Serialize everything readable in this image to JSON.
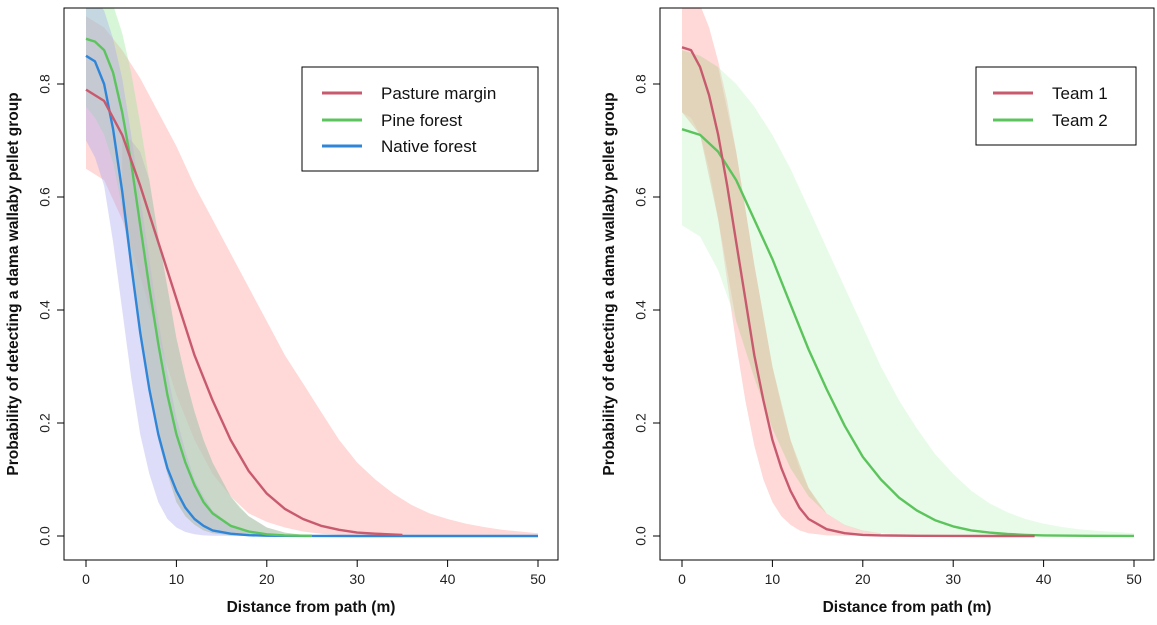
{
  "chart_data": [
    {
      "type": "line",
      "title": "",
      "xlabel": "Distance from path (m)",
      "ylabel": "Probability of detecting a dama wallaby pellet group",
      "xlim": [
        0,
        50
      ],
      "ylim": [
        0,
        0.93
      ],
      "xticks": [
        0,
        10,
        20,
        30,
        40,
        50
      ],
      "yticks": [
        0.0,
        0.2,
        0.4,
        0.6,
        0.8
      ],
      "xtick_labels": [
        "0",
        "10",
        "20",
        "30",
        "40",
        "50"
      ],
      "ytick_labels": [
        "0.0",
        "0.2",
        "0.4",
        "0.6",
        "0.8"
      ],
      "legend_position": "top-right",
      "series": [
        {
          "name": "Pasture margin",
          "color": "#c85a6e",
          "band_color": "#ff9d9d",
          "x": [
            0,
            2,
            4,
            6,
            8,
            10,
            12,
            14,
            16,
            18,
            20,
            22,
            24,
            26,
            28,
            30,
            32,
            35
          ],
          "y": [
            0.79,
            0.77,
            0.71,
            0.62,
            0.52,
            0.42,
            0.32,
            0.24,
            0.17,
            0.115,
            0.075,
            0.048,
            0.03,
            0.018,
            0.011,
            0.006,
            0.004,
            0.002
          ],
          "band_x": [
            0,
            2,
            4,
            6,
            8,
            10,
            12,
            14,
            16,
            18,
            20,
            22,
            24,
            26,
            28,
            30,
            32,
            34,
            36,
            38,
            40,
            42,
            44,
            46,
            48,
            50
          ],
          "band_lower": [
            0.65,
            0.63,
            0.56,
            0.46,
            0.35,
            0.25,
            0.17,
            0.11,
            0.07,
            0.04,
            0.025,
            0.015,
            0.008,
            0.004,
            0.002,
            0.001,
            0.0005,
            0.0003,
            0.0002,
            0.0001,
            0,
            0,
            0,
            0,
            0,
            0
          ],
          "band_upper": [
            0.92,
            0.9,
            0.86,
            0.81,
            0.75,
            0.69,
            0.62,
            0.56,
            0.5,
            0.44,
            0.38,
            0.32,
            0.27,
            0.22,
            0.17,
            0.13,
            0.1,
            0.075,
            0.055,
            0.04,
            0.03,
            0.022,
            0.016,
            0.011,
            0.008,
            0.005
          ]
        },
        {
          "name": "Pine forest",
          "color": "#5cc45c",
          "band_color": "#9be89b",
          "x": [
            0,
            1,
            2,
            3,
            4,
            5,
            6,
            7,
            8,
            9,
            10,
            11,
            12,
            13,
            14,
            16,
            18,
            20,
            22,
            24,
            25
          ],
          "y": [
            0.88,
            0.875,
            0.86,
            0.82,
            0.75,
            0.66,
            0.55,
            0.44,
            0.34,
            0.25,
            0.18,
            0.13,
            0.09,
            0.06,
            0.04,
            0.018,
            0.008,
            0.003,
            0.001,
            0.0005,
            0.0003
          ],
          "band_x": [
            0,
            1,
            2,
            3,
            4,
            5,
            6,
            7,
            8,
            9,
            10,
            11,
            12,
            13,
            14,
            15,
            16,
            18,
            20,
            22,
            24
          ],
          "band_lower": [
            0.76,
            0.74,
            0.71,
            0.66,
            0.58,
            0.47,
            0.36,
            0.26,
            0.17,
            0.11,
            0.06,
            0.035,
            0.02,
            0.01,
            0.005,
            0.003,
            0.001,
            0.0004,
            0.0002,
            0.0001,
            0
          ],
          "band_upper": [
            0.97,
            0.97,
            0.96,
            0.94,
            0.89,
            0.82,
            0.73,
            0.63,
            0.53,
            0.44,
            0.35,
            0.28,
            0.22,
            0.17,
            0.13,
            0.1,
            0.07,
            0.035,
            0.015,
            0.006,
            0.002
          ]
        },
        {
          "name": "Native forest",
          "color": "#2f86d8",
          "band_color": "#aaaaf0",
          "x": [
            0,
            1,
            2,
            3,
            4,
            5,
            6,
            7,
            8,
            9,
            10,
            11,
            12,
            13,
            14,
            16,
            18,
            20,
            24,
            30,
            40,
            50
          ],
          "y": [
            0.85,
            0.84,
            0.8,
            0.72,
            0.61,
            0.48,
            0.36,
            0.26,
            0.18,
            0.12,
            0.08,
            0.05,
            0.03,
            0.018,
            0.01,
            0.004,
            0.0015,
            0.0005,
            0.0001,
            0,
            0,
            0
          ],
          "band_x": [
            0,
            1,
            2,
            3,
            4,
            5,
            6,
            7,
            8,
            9,
            10,
            11,
            12,
            13,
            14,
            16,
            18,
            20,
            22
          ],
          "band_lower": [
            0.7,
            0.67,
            0.62,
            0.52,
            0.4,
            0.28,
            0.18,
            0.11,
            0.06,
            0.03,
            0.015,
            0.007,
            0.003,
            0.001,
            0.0005,
            0.0001,
            0,
            0,
            0
          ],
          "band_upper": [
            0.95,
            0.95,
            0.93,
            0.88,
            0.81,
            0.71,
            0.6,
            0.49,
            0.38,
            0.29,
            0.21,
            0.15,
            0.1,
            0.07,
            0.045,
            0.02,
            0.008,
            0.003,
            0.001
          ]
        }
      ],
      "overlap_color": "#bdbdbd",
      "overlap_x": [
        4,
        5,
        6,
        7,
        8,
        9,
        10,
        11,
        12,
        13,
        14,
        15,
        16,
        17,
        18,
        20,
        22,
        24
      ],
      "overlap_lower": [
        0.58,
        0.47,
        0.36,
        0.26,
        0.17,
        0.11,
        0.06,
        0.035,
        0.02,
        0.01,
        0.005,
        0.003,
        0.001,
        0.0005,
        0.0004,
        0.0002,
        0.0001,
        0
      ],
      "overlap_upper": [
        0.71,
        0.7,
        0.68,
        0.63,
        0.53,
        0.44,
        0.35,
        0.28,
        0.22,
        0.17,
        0.13,
        0.1,
        0.07,
        0.05,
        0.035,
        0.015,
        0.006,
        0.002
      ]
    },
    {
      "type": "line",
      "title": "",
      "xlabel": "Distance from path (m)",
      "ylabel": "Probability of detecting a dama wallaby pellet group",
      "xlim": [
        0,
        50
      ],
      "ylim": [
        0,
        0.93
      ],
      "xticks": [
        0,
        10,
        20,
        30,
        40,
        50
      ],
      "yticks": [
        0.0,
        0.2,
        0.4,
        0.6,
        0.8
      ],
      "xtick_labels": [
        "0",
        "10",
        "20",
        "30",
        "40",
        "50"
      ],
      "ytick_labels": [
        "0.0",
        "0.2",
        "0.4",
        "0.6",
        "0.8"
      ],
      "legend_position": "top-right",
      "series": [
        {
          "name": "Team 1",
          "color": "#c85a6e",
          "band_color": "#ff9d9d",
          "x": [
            0,
            1,
            2,
            3,
            4,
            5,
            6,
            7,
            8,
            9,
            10,
            11,
            12,
            13,
            14,
            16,
            18,
            20,
            22,
            26,
            30,
            35,
            39
          ],
          "y": [
            0.865,
            0.86,
            0.83,
            0.78,
            0.71,
            0.62,
            0.52,
            0.42,
            0.32,
            0.24,
            0.17,
            0.12,
            0.08,
            0.05,
            0.03,
            0.012,
            0.005,
            0.002,
            0.001,
            0.0003,
            0.0001,
            0,
            0
          ],
          "band_x": [
            0,
            1,
            2,
            3,
            4,
            5,
            6,
            7,
            8,
            9,
            10,
            11,
            12,
            13,
            14,
            15,
            16,
            18,
            20,
            22
          ],
          "band_lower": [
            0.75,
            0.74,
            0.71,
            0.65,
            0.56,
            0.45,
            0.34,
            0.24,
            0.16,
            0.1,
            0.06,
            0.035,
            0.02,
            0.01,
            0.005,
            0.003,
            0.001,
            0.0003,
            0.0001,
            0
          ],
          "band_upper": [
            0.96,
            0.96,
            0.94,
            0.9,
            0.84,
            0.77,
            0.68,
            0.58,
            0.48,
            0.39,
            0.3,
            0.23,
            0.17,
            0.12,
            0.085,
            0.06,
            0.04,
            0.018,
            0.008,
            0.003
          ]
        },
        {
          "name": "Team 2",
          "color": "#5cc45c",
          "band_color": "#c6f5c6",
          "x": [
            0,
            2,
            4,
            6,
            8,
            10,
            12,
            14,
            16,
            18,
            20,
            22,
            24,
            26,
            28,
            30,
            32,
            34,
            36,
            38,
            40,
            45,
            50
          ],
          "y": [
            0.72,
            0.71,
            0.68,
            0.63,
            0.56,
            0.49,
            0.41,
            0.33,
            0.26,
            0.195,
            0.14,
            0.1,
            0.068,
            0.045,
            0.028,
            0.017,
            0.01,
            0.006,
            0.0035,
            0.002,
            0.001,
            0.0003,
            0.0001
          ],
          "band_x": [
            0,
            2,
            4,
            6,
            8,
            10,
            12,
            14,
            16,
            18,
            20,
            22,
            24,
            26,
            28,
            30,
            32,
            34,
            36,
            38,
            40,
            42,
            44,
            46,
            48,
            50
          ],
          "band_lower": [
            0.55,
            0.53,
            0.47,
            0.38,
            0.28,
            0.19,
            0.12,
            0.07,
            0.04,
            0.02,
            0.01,
            0.005,
            0.002,
            0.001,
            0.0005,
            0.0002,
            0.0001,
            0,
            0,
            0,
            0,
            0,
            0,
            0,
            0,
            0
          ],
          "band_upper": [
            0.86,
            0.85,
            0.83,
            0.8,
            0.76,
            0.71,
            0.65,
            0.58,
            0.51,
            0.44,
            0.37,
            0.3,
            0.24,
            0.19,
            0.145,
            0.11,
            0.08,
            0.058,
            0.042,
            0.03,
            0.022,
            0.016,
            0.012,
            0.009,
            0.007,
            0.005
          ]
        }
      ],
      "overlap_color": "#dcc9a8",
      "overlap_x": [
        0,
        2,
        4,
        6,
        8,
        10,
        12,
        14,
        16,
        18,
        20,
        22
      ],
      "overlap_lower": [
        0.75,
        0.71,
        0.56,
        0.38,
        0.28,
        0.19,
        0.12,
        0.07,
        0.04,
        0.02,
        0.01,
        0.005
      ],
      "overlap_upper": [
        0.86,
        0.85,
        0.83,
        0.68,
        0.48,
        0.3,
        0.17,
        0.085,
        0.04,
        0.018,
        0.008,
        0.003
      ]
    }
  ]
}
